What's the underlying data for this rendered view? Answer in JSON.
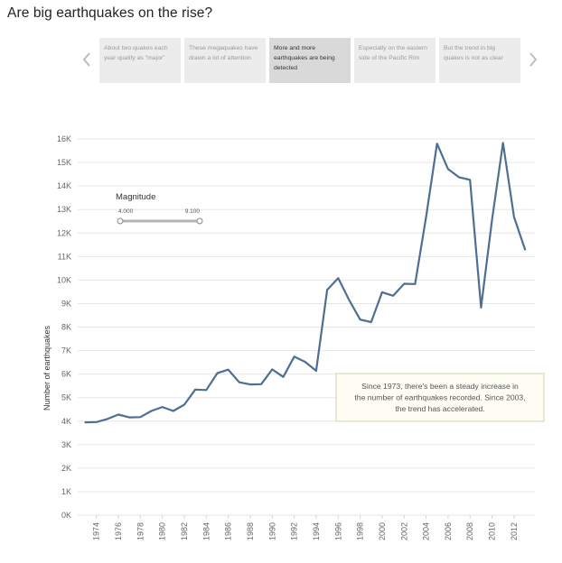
{
  "page": {
    "title": "Are big earthquakes on the rise?"
  },
  "story": {
    "prev_icon": "chevron-left-icon",
    "next_icon": "chevron-right-icon",
    "points": [
      {
        "caption": "About two quakes each year qualify as \"major\"",
        "active": false
      },
      {
        "caption": "These megaquakes have drawn a lot of attention",
        "active": false
      },
      {
        "caption": "More and more earthquakes are being detected",
        "active": true
      },
      {
        "caption": "Especially on the eastern side of the Pacific Rim",
        "active": false
      },
      {
        "caption": "But the trend in big quakes is not as clear",
        "active": false
      }
    ]
  },
  "filter": {
    "label": "Magnitude",
    "min_value": "4.000",
    "max_value": "9.100",
    "range": [
      4.0,
      9.1
    ]
  },
  "annotation": {
    "text": "Since 1973, there's been a steady increase in the number of earthquakes recorded. Since 2003, the trend has accelerated."
  },
  "colors": {
    "line": "#4e6f93",
    "annotation_fill": "#fdfdf3",
    "annotation_border": "#d9d0a9",
    "grid": "#e6e6e6",
    "active_point": "#d9d9d9",
    "inactive_point": "#ececec"
  },
  "chart_data": {
    "type": "line",
    "ylabel": "Number of earthquakes",
    "xlabel": "",
    "ylim": [
      0,
      16000
    ],
    "grid": true,
    "y_ticks": [
      0,
      1000,
      2000,
      3000,
      4000,
      5000,
      6000,
      7000,
      8000,
      9000,
      10000,
      11000,
      12000,
      13000,
      14000,
      15000,
      16000
    ],
    "y_tick_labels": [
      "0K",
      "1K",
      "2K",
      "3K",
      "4K",
      "5K",
      "6K",
      "7K",
      "8K",
      "9K",
      "10K",
      "11K",
      "12K",
      "13K",
      "14K",
      "15K",
      "16K"
    ],
    "x_ticks": [
      1974,
      1976,
      1978,
      1980,
      1982,
      1984,
      1986,
      1988,
      1990,
      1992,
      1994,
      1996,
      1998,
      2000,
      2002,
      2004,
      2006,
      2008,
      2010,
      2012
    ],
    "x": [
      1973,
      1974,
      1975,
      1976,
      1977,
      1978,
      1979,
      1980,
      1981,
      1982,
      1983,
      1984,
      1985,
      1986,
      1987,
      1988,
      1989,
      1990,
      1991,
      1992,
      1993,
      1994,
      1995,
      1996,
      1997,
      1998,
      1999,
      2000,
      2001,
      2002,
      2003,
      2004,
      2005,
      2006,
      2007,
      2008,
      2009,
      2010,
      2011,
      2012,
      2013
    ],
    "values": [
      3950,
      3960,
      4090,
      4280,
      4160,
      4170,
      4430,
      4600,
      4430,
      4700,
      5340,
      5320,
      6040,
      6190,
      5650,
      5560,
      5570,
      6200,
      5880,
      6740,
      6520,
      6140,
      9580,
      10080,
      9150,
      8320,
      8210,
      9480,
      9330,
      9840,
      9830,
      12690,
      15800,
      14720,
      14370,
      14260,
      8830,
      12570,
      15830,
      12680,
      11300
    ]
  }
}
